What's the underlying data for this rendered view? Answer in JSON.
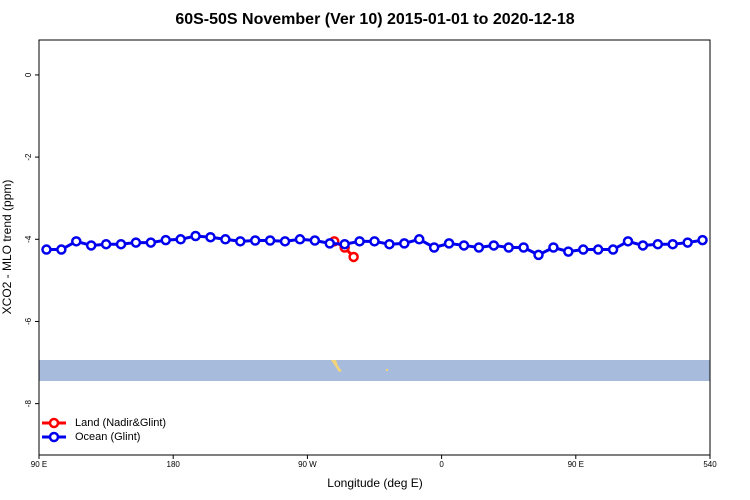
{
  "chart_data": {
    "type": "line",
    "title": "60S-50S November (Ver 10)   2015-01-01 to 2020-12-18",
    "xlabel": "Longitude (deg E)",
    "ylabel": "XCO2 - MLO trend (ppm)",
    "xlim": [
      90,
      540
    ],
    "xticks": [
      {
        "value": 90,
        "label": "90 E"
      },
      180,
      {
        "value": 270,
        "label": "90 W"
      },
      {
        "value": 360,
        "label": "0"
      },
      {
        "value": 450,
        "label": "90 E"
      },
      540
    ],
    "ylim": [
      -9.25,
      0.85
    ],
    "yticks": [
      -8,
      -6,
      -4,
      -2,
      0
    ],
    "legend": "bottomleft",
    "series": [
      {
        "name": "Land (Nadir&Glint)",
        "color": "#ff0000",
        "x": [
          288,
          295,
          301
        ],
        "values": [
          -4.05,
          -4.2,
          -4.43
        ]
      },
      {
        "name": "Ocean (Glint)",
        "color": "#0000ee",
        "x": [
          95,
          105,
          115,
          125,
          135,
          145,
          155,
          165,
          175,
          185,
          195,
          205,
          215,
          225,
          235,
          245,
          255,
          265,
          275,
          285,
          295,
          305,
          315,
          325,
          335,
          345,
          355,
          365,
          375,
          385,
          395,
          405,
          415,
          425,
          435,
          445,
          455,
          465,
          475,
          485,
          495,
          505,
          515,
          525,
          535
        ],
        "values": [
          -4.25,
          -4.25,
          -4.05,
          -4.15,
          -4.12,
          -4.12,
          -4.08,
          -4.08,
          -4.02,
          -4.0,
          -3.92,
          -3.95,
          -4.0,
          -4.05,
          -4.03,
          -4.03,
          -4.05,
          -4.0,
          -4.03,
          -4.1,
          -4.12,
          -4.05,
          -4.05,
          -4.12,
          -4.1,
          -4.0,
          -4.2,
          -4.1,
          -4.15,
          -4.2,
          -4.15,
          -4.2,
          -4.2,
          -4.38,
          -4.2,
          -4.3,
          -4.25,
          -4.25,
          -4.25,
          -4.05,
          -4.15,
          -4.12,
          -4.12,
          -4.08,
          -4.02
        ]
      }
    ]
  }
}
